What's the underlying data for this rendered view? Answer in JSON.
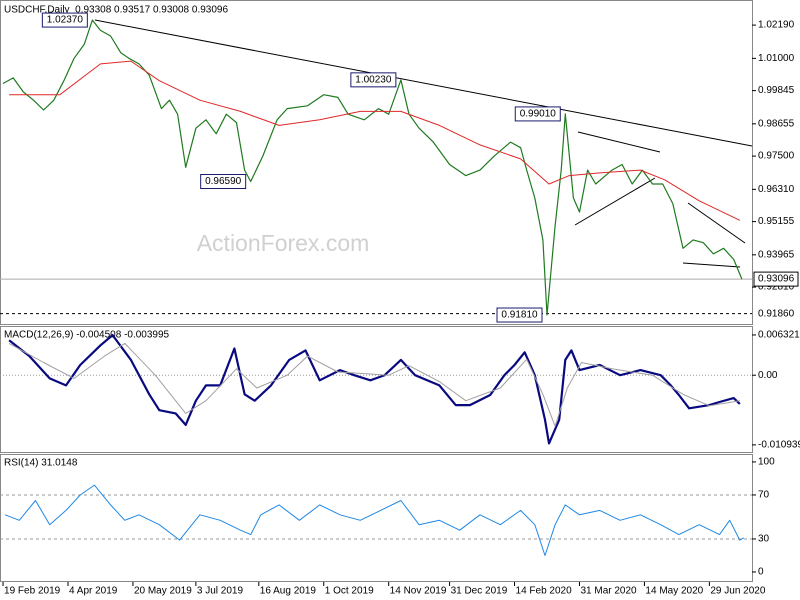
{
  "chart_data": [
    {
      "type": "line",
      "title": "USDCHF,Daily  0.93308 0.93517 0.93008 0.93096",
      "watermark": "ActionForex.com",
      "xlim": [
        -1.5,
        369
      ],
      "ylim": [
        0.9156,
        1.0291
      ],
      "yticks": [
        {
          "value": 1.0219,
          "label": "1.02190"
        },
        {
          "value": 1.01,
          "label": "1.01000"
        },
        0.99845,
        0.98655,
        {
          "value": 0.975,
          "label": "0.97500"
        },
        {
          "value": 0.9631,
          "label": "0.96310"
        },
        0.95155,
        0.93965,
        {
          "value": 0.9281,
          "label": "0.92810"
        }
      ],
      "series": [
        {
          "color": "#1f7a1f",
          "width": 1.2,
          "x": [
            0,
            5,
            10,
            15,
            20,
            25,
            30,
            35,
            40,
            44,
            48,
            53,
            58,
            62,
            67,
            72,
            78,
            82,
            86,
            90,
            95,
            100,
            105,
            110,
            115,
            119,
            122,
            128,
            135,
            140,
            150,
            158,
            165,
            170,
            178,
            185,
            190,
            196,
            200,
            205,
            212,
            220,
            228,
            235,
            242,
            250,
            255,
            258,
            262,
            266,
            268,
            272,
            275,
            277,
            281,
            284,
            288,
            292,
            300,
            305,
            310,
            315,
            320,
            325,
            330,
            335,
            340,
            345,
            350,
            355,
            360,
            364
          ],
          "values": [
            1.001,
            1.003,
            0.998,
            0.995,
            0.9915,
            0.995,
            1.002,
            1.01,
            1.015,
            1.0237,
            1.02,
            1.018,
            1.012,
            1.01,
            1.008,
            1.004,
            0.992,
            0.995,
            0.99,
            0.971,
            0.985,
            0.988,
            0.983,
            0.99,
            0.987,
            0.97,
            0.9659,
            0.975,
            0.988,
            0.992,
            0.993,
            0.997,
            0.996,
            0.99,
            0.988,
            0.992,
            0.99,
            1.0023,
            0.99,
            0.985,
            0.98,
            0.972,
            0.968,
            0.97,
            0.975,
            0.98,
            0.978,
            0.97,
            0.96,
            0.945,
            0.9181,
            0.95,
            0.97,
            0.9901,
            0.96,
            0.955,
            0.97,
            0.965,
            0.97,
            0.972,
            0.965,
            0.97,
            0.965,
            0.965,
            0.958,
            0.942,
            0.945,
            0.944,
            0.94,
            0.942,
            0.938,
            0.93096
          ]
        },
        {
          "color": "#e02828",
          "width": 1,
          "x": [
            3,
            28,
            48,
            63,
            77,
            97,
            117,
            136,
            156,
            176,
            196,
            215,
            235,
            255,
            269,
            279,
            294,
            314,
            326,
            343,
            363
          ],
          "values": [
            0.997,
            0.997,
            1.008,
            1.009,
            1.002,
            0.995,
            0.991,
            0.986,
            0.988,
            0.991,
            0.991,
            0.986,
            0.979,
            0.974,
            0.965,
            0.968,
            0.969,
            0.97,
            0.9665,
            0.959,
            0.952
          ]
        }
      ],
      "annotations": [
        {
          "text": "1.02370",
          "x": 44,
          "y": 1.0237
        },
        {
          "text": "1.00230",
          "x": 196,
          "y": 1.0023
        },
        {
          "text": "0.99010",
          "x": 277,
          "y": 0.9901
        },
        {
          "text": "0.96590",
          "x": 122,
          "y": 0.9659
        },
        {
          "text": "0.91810",
          "x": 268,
          "y": 0.9181
        }
      ],
      "hlines": [
        {
          "value": 0.93096,
          "label": "0.93096",
          "style": "solid"
        },
        {
          "value": 0.9186,
          "label": "0.91860",
          "style": "dashed"
        }
      ]
    },
    {
      "type": "line",
      "title": "MACD(12,26,9) -0.004508 -0.003995",
      "xlim": [
        -1.5,
        369
      ],
      "ylim": [
        -0.0119,
        0.0071
      ],
      "yticks": [
        0.006321,
        {
          "value": 0,
          "label": "0.00"
        },
        -0.010939
      ],
      "zero_line": true,
      "series": [
        {
          "color": "#0a0a80",
          "width": 2.2,
          "x": [
            3,
            13,
            23,
            31,
            38,
            48,
            54,
            63,
            72,
            77,
            85,
            90,
            95,
            100,
            107,
            114,
            119,
            124,
            132,
            141,
            149,
            156,
            166,
            173,
            181,
            188,
            196,
            203,
            215,
            223,
            230,
            240,
            247,
            252,
            257,
            262,
            267,
            269,
            274,
            277,
            280,
            284,
            294,
            304,
            314,
            324,
            329,
            333,
            338,
            348,
            353,
            360,
            363
          ],
          "values": [
            0.0055,
            0.003,
            -0.0005,
            -0.0016,
            0.0016,
            0.0047,
            0.0063,
            0.0024,
            -0.003,
            -0.0055,
            -0.006,
            -0.0078,
            -0.004,
            -0.0016,
            -0.0016,
            0.0042,
            -0.003,
            -0.004,
            -0.0016,
            0.0024,
            0.0039,
            -0.0008,
            0.0008,
            0,
            -0.0008,
            0,
            0.0024,
            0,
            -0.0016,
            -0.0047,
            -0.0047,
            -0.0031,
            0,
            0.0016,
            0.0036,
            0,
            -0.007,
            -0.0107,
            -0.007,
            0.0024,
            0.0039,
            0.0008,
            0.0016,
            0,
            0.0008,
            0,
            -0.0016,
            -0.0031,
            -0.0052,
            -0.0047,
            -0.0042,
            -0.0036,
            -0.0045
          ]
        },
        {
          "color": "#a0a0a0",
          "width": 1,
          "x": [
            3,
            20,
            35,
            50,
            60,
            75,
            90,
            100,
            115,
            125,
            140,
            150,
            165,
            190,
            200,
            215,
            228,
            245,
            258,
            266,
            272,
            278,
            285,
            300,
            320,
            335,
            348,
            363
          ],
          "values": [
            0.005,
            0.002,
            -0.0005,
            0.003,
            0.005,
            0,
            -0.006,
            -0.004,
            0.001,
            -0.002,
            0,
            0.003,
            0.0005,
            0,
            0.0015,
            -0.001,
            -0.004,
            -0.002,
            0.0025,
            -0.003,
            -0.008,
            -0.002,
            0.002,
            0.001,
            0,
            -0.003,
            -0.0048,
            -0.004
          ]
        }
      ]
    },
    {
      "type": "line",
      "title": "RSI(14) 31.0148",
      "xlim": [
        -1.5,
        369
      ],
      "ylim": [
        -7.3,
        104.5
      ],
      "yticks": [
        100,
        70,
        30,
        0
      ],
      "levels": [
        70,
        30
      ],
      "xticks": [
        {
          "value": 0,
          "label": "19 Feb 2019"
        },
        {
          "value": 32,
          "label": "4 Apr 2019"
        },
        {
          "value": 64,
          "label": "20 May 2019"
        },
        {
          "value": 95,
          "label": "3 Jul 2019"
        },
        {
          "value": 126,
          "label": "16 Aug 2019"
        },
        {
          "value": 158,
          "label": "1 Oct 2019"
        },
        {
          "value": 190,
          "label": "14 Nov 2019"
        },
        {
          "value": 220,
          "label": "31 Dec 2019"
        },
        {
          "value": 252,
          "label": "14 Feb 2020"
        },
        {
          "value": 284,
          "label": "31 Mar 2020"
        },
        {
          "value": 316,
          "label": "14 May 2020"
        },
        {
          "value": 348,
          "label": "29 Jun 2020"
        }
      ],
      "series": [
        {
          "color": "#1e88e5",
          "width": 1,
          "x": [
            1,
            8,
            16,
            23,
            31,
            38,
            45,
            53,
            60,
            67,
            77,
            87,
            97,
            107,
            117,
            122,
            127,
            136,
            146,
            156,
            166,
            176,
            186,
            196,
            205,
            215,
            225,
            235,
            245,
            255,
            262,
            267,
            272,
            277,
            284,
            294,
            304,
            314,
            324,
            333,
            343,
            353,
            358,
            363,
            365
          ],
          "values": [
            52,
            47,
            65,
            43,
            56,
            70,
            79,
            61,
            47,
            52,
            43,
            29,
            52,
            47,
            38,
            34,
            52,
            61,
            47,
            61,
            52,
            47,
            56,
            65,
            43,
            47,
            38,
            52,
            43,
            56,
            43,
            15,
            43,
            61,
            52,
            56,
            47,
            52,
            43,
            34,
            43,
            34,
            47,
            29,
            31.0148
          ]
        }
      ]
    }
  ]
}
